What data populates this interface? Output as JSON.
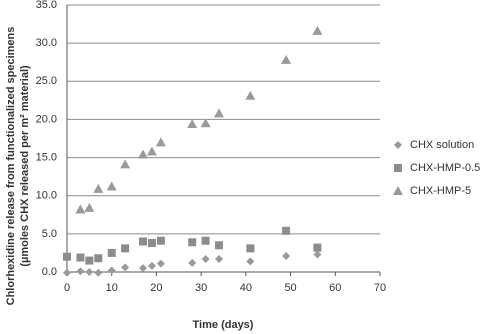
{
  "chart_data": {
    "type": "scatter",
    "xlabel": "Time (days)",
    "ylabel": [
      "Chlorhexidine release from functionalized specimens",
      "(µmoles CHX released per m² material)"
    ],
    "xlim": [
      0,
      70
    ],
    "xticks": [
      0,
      10,
      20,
      30,
      40,
      50,
      60,
      70
    ],
    "ylim": [
      0,
      35
    ],
    "yticks": [
      {
        "value": 0,
        "label": "0.0"
      },
      {
        "value": 5,
        "label": "5.0"
      },
      {
        "value": 10,
        "label": "10.0"
      },
      {
        "value": 15,
        "label": "15.0"
      },
      {
        "value": 20,
        "label": "20.0"
      },
      {
        "value": 25,
        "label": "25.0"
      },
      {
        "value": 30,
        "label": "30.0"
      },
      {
        "value": 35,
        "label": "35.0"
      }
    ],
    "grid": true,
    "legend": "right",
    "series": [
      {
        "name": "CHX solution",
        "color": "#9a9a9a",
        "marker": "diamond",
        "x": [
          0,
          3,
          5,
          7,
          10,
          13,
          17,
          19,
          21,
          28,
          31,
          34,
          41,
          49,
          56
        ],
        "values": [
          -0.1,
          0.1,
          0.0,
          -0.1,
          0.2,
          0.6,
          0.5,
          0.8,
          1.1,
          1.2,
          1.7,
          1.7,
          1.4,
          2.1,
          2.3
        ]
      },
      {
        "name": "CHX-HMP-0.5",
        "color": "#8c8c8c",
        "marker": "square",
        "x": [
          0,
          3,
          5,
          7,
          10,
          13,
          17,
          19,
          21,
          28,
          31,
          34,
          41,
          49,
          56
        ],
        "values": [
          2.0,
          1.9,
          1.5,
          1.8,
          2.5,
          3.1,
          4.0,
          3.8,
          4.1,
          3.9,
          4.1,
          3.5,
          3.1,
          5.4,
          3.2
        ]
      },
      {
        "name": "CHX-HMP-5",
        "color": "#9a9a9a",
        "marker": "triangle",
        "x": [
          3,
          5,
          7,
          10,
          13,
          17,
          19,
          21,
          28,
          31,
          34,
          41,
          49,
          56
        ],
        "values": [
          8.2,
          8.4,
          10.9,
          11.2,
          14.1,
          15.4,
          15.8,
          17.0,
          19.4,
          19.5,
          20.8,
          23.1,
          27.8,
          31.6
        ]
      }
    ]
  }
}
